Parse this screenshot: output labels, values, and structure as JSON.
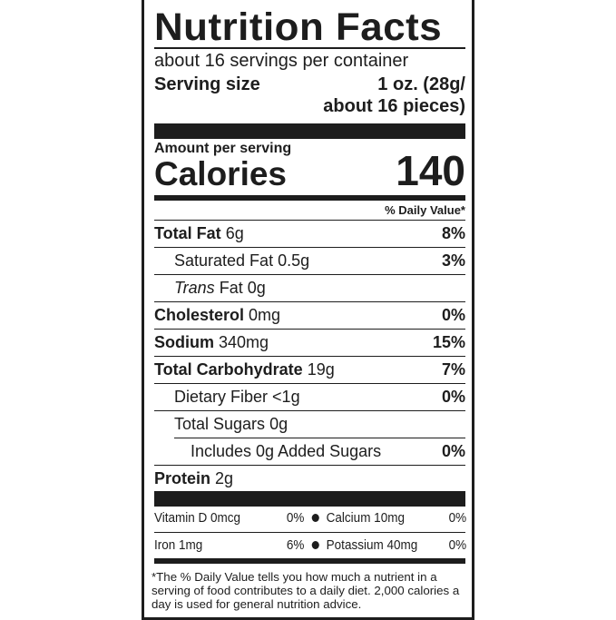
{
  "title": "Nutrition Facts",
  "servings_per_container": "about 16 servings per container",
  "serving_size": {
    "label": "Serving size",
    "value_line1": "1 oz. (28g/",
    "value_line2": "about 16 pieces)"
  },
  "amount_per_serving": "Amount per serving",
  "calories": {
    "label": "Calories",
    "value": "140"
  },
  "daily_value_header": "% Daily Value*",
  "nutrients": [
    {
      "name": "Total Fat",
      "amount": "6g",
      "dv": "8%",
      "bold": true,
      "indent": 0
    },
    {
      "name": "Saturated Fat",
      "amount": "0.5g",
      "dv": "3%",
      "bold": false,
      "indent": 1
    },
    {
      "name": "Trans",
      "name2": "Fat",
      "amount": "0g",
      "dv": "",
      "bold": false,
      "indent": 1
    },
    {
      "name": "Cholesterol",
      "amount": "0mg",
      "dv": "0%",
      "bold": true,
      "indent": 0
    },
    {
      "name": "Sodium",
      "amount": "340mg",
      "dv": "15%",
      "bold": true,
      "indent": 0
    },
    {
      "name": "Total Carbohydrate",
      "amount": "19g",
      "dv": "7%",
      "bold": true,
      "indent": 0
    },
    {
      "name": "Dietary Fiber",
      "amount": "<1g",
      "dv": "0%",
      "bold": false,
      "indent": 1
    },
    {
      "name": "Total Sugars",
      "amount": "0g",
      "dv": "",
      "bold": false,
      "indent": 1
    },
    {
      "name": "Includes 0g Added Sugars",
      "amount": "",
      "dv": "0%",
      "bold": false,
      "indent": 2
    },
    {
      "name": "Protein",
      "amount": "2g",
      "dv": "",
      "bold": true,
      "indent": 0
    }
  ],
  "vitamins": [
    {
      "left": "Vitamin D 0mcg",
      "left_dv": "0%",
      "right": "Calcium 10mg",
      "right_dv": "0%"
    },
    {
      "left": "Iron 1mg",
      "left_dv": "6%",
      "right": "Potassium 40mg",
      "right_dv": "0%"
    }
  ],
  "footnote": "*The % Daily Value tells you how much a nutrient in a serving of food contributes to a daily diet. 2,000 calories a day is used for general nutrition advice."
}
